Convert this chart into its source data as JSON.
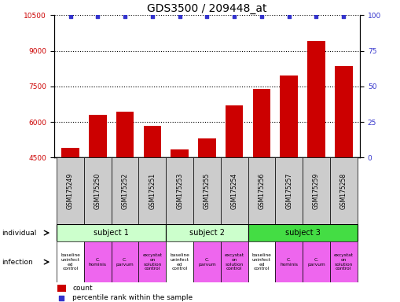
{
  "title": "GDS3500 / 209448_at",
  "bar_values": [
    4900,
    6300,
    6450,
    5850,
    4850,
    5300,
    6700,
    7400,
    7950,
    9400,
    8350
  ],
  "percentile_values": [
    99,
    99,
    99,
    99,
    99,
    99,
    99,
    99,
    99,
    99,
    99
  ],
  "sample_labels": [
    "GSM175249",
    "GSM175250",
    "GSM175252",
    "GSM175251",
    "GSM175253",
    "GSM175255",
    "GSM175254",
    "GSM175256",
    "GSM175257",
    "GSM175259",
    "GSM175258"
  ],
  "bar_color": "#cc0000",
  "percentile_color": "#3333cc",
  "ylim_left": [
    4500,
    10500
  ],
  "ylim_right": [
    0,
    100
  ],
  "yticks_left": [
    4500,
    6000,
    7500,
    9000,
    10500
  ],
  "yticks_right": [
    0,
    25,
    50,
    75,
    100
  ],
  "subjects": [
    {
      "label": "subject 1",
      "start": 0,
      "end": 4,
      "color": "#ccffcc"
    },
    {
      "label": "subject 2",
      "start": 4,
      "end": 7,
      "color": "#ccffcc"
    },
    {
      "label": "subject 3",
      "start": 7,
      "end": 11,
      "color": "#44dd44"
    }
  ],
  "infections": [
    {
      "label": "baseline\nuninfect\ned\ncontrol",
      "col": 0,
      "color": "#ffffff"
    },
    {
      "label": "C.\nhominis",
      "col": 1,
      "color": "#ee66ee"
    },
    {
      "label": "C.\nparvum",
      "col": 2,
      "color": "#ee66ee"
    },
    {
      "label": "excystat\non\nsolution\ncontrol",
      "col": 3,
      "color": "#ee66ee"
    },
    {
      "label": "baseline\nuninfect\ned\ncontrol",
      "col": 4,
      "color": "#ffffff"
    },
    {
      "label": "C.\nparvum",
      "col": 5,
      "color": "#ee66ee"
    },
    {
      "label": "excystat\non\nsolution\ncontrol",
      "col": 6,
      "color": "#ee66ee"
    },
    {
      "label": "baseline\nuninfect\ned\ncontrol",
      "col": 7,
      "color": "#ffffff"
    },
    {
      "label": "C.\nhominis",
      "col": 8,
      "color": "#ee66ee"
    },
    {
      "label": "C.\nparvum",
      "col": 9,
      "color": "#ee66ee"
    },
    {
      "label": "excystat\non\nsolution\ncontrol",
      "col": 10,
      "color": "#ee66ee"
    }
  ],
  "legend_items": [
    {
      "label": "count",
      "color": "#cc0000"
    },
    {
      "label": "percentile rank within the sample",
      "color": "#3333cc"
    }
  ],
  "sample_bg_color": "#cccccc",
  "title_fontsize": 10,
  "tick_fontsize": 6.5,
  "label_fontsize": 7
}
